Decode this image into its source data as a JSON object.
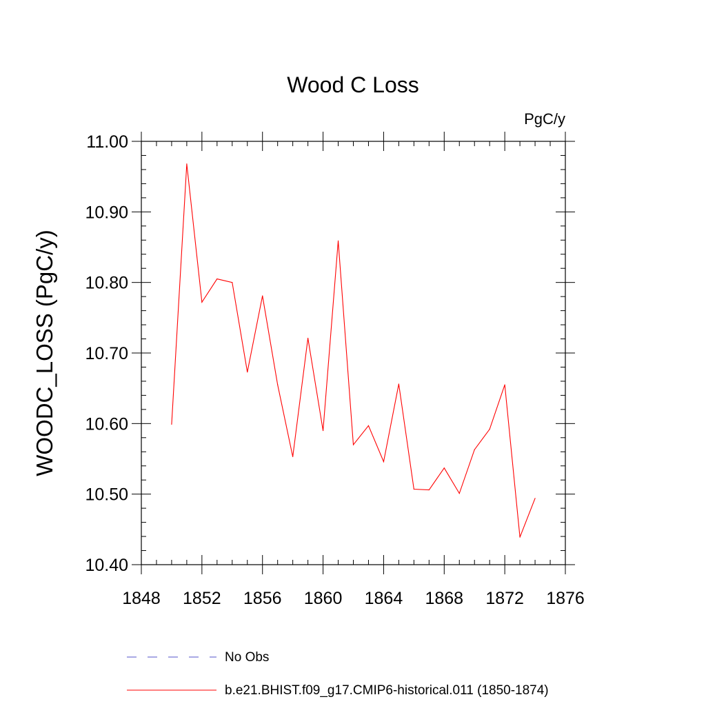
{
  "chart_data": {
    "type": "line",
    "title": "Wood C Loss",
    "units": "PgC/y",
    "ylabel": "WOODC_LOSS  (PgC/y)",
    "xlabel": "",
    "xlim": [
      1848,
      1876
    ],
    "ylim": [
      10.4,
      11.0
    ],
    "x_ticks": [
      "1848",
      "1852",
      "1856",
      "1860",
      "1864",
      "1868",
      "1872",
      "1876"
    ],
    "y_ticks": [
      "10.40",
      "10.50",
      "10.60",
      "10.70",
      "10.80",
      "10.90",
      "11.00"
    ],
    "grid": false,
    "legend_placement": "bottom",
    "series": [
      {
        "name": "b.e21.BHIST.f09_g17.CMIP6-historical.011 (1850-1874)",
        "color": "#ff0000",
        "style": "solid",
        "x": [
          1850,
          1851,
          1852,
          1853,
          1854,
          1855,
          1856,
          1857,
          1858,
          1859,
          1860,
          1861,
          1862,
          1863,
          1864,
          1865,
          1866,
          1867,
          1868,
          1869,
          1870,
          1871,
          1872,
          1873,
          1874
        ],
        "values": [
          10.599,
          10.968,
          10.772,
          10.805,
          10.8,
          10.673,
          10.781,
          10.655,
          10.553,
          10.721,
          10.59,
          10.859,
          10.57,
          10.597,
          10.546,
          10.656,
          10.507,
          10.506,
          10.537,
          10.501,
          10.563,
          10.592,
          10.655,
          10.439,
          10.494
        ]
      }
    ],
    "legend": [
      {
        "label": "No Obs",
        "color": "#5050c8",
        "style": "dashed"
      },
      {
        "label": "b.e21.BHIST.f09_g17.CMIP6-historical.011 (1850-1874)",
        "color": "#ff0000",
        "style": "solid"
      }
    ]
  }
}
